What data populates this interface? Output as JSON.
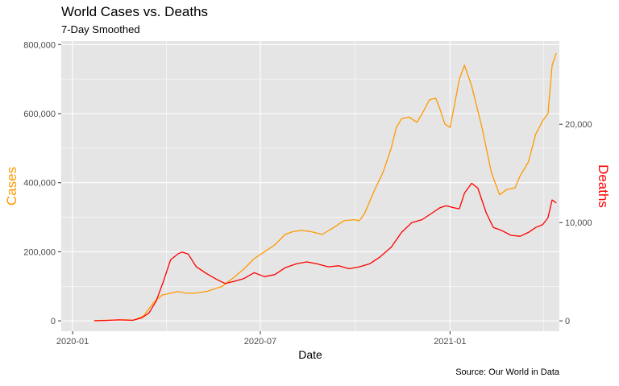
{
  "chart_data": {
    "type": "line",
    "title": "World Cases vs. Deaths",
    "subtitle": "7-Day Smoothed",
    "xlabel": "Date",
    "ylabel_left": "Cases",
    "ylabel_right": "Deaths",
    "caption": "Source:  Our World in Data",
    "x_range": [
      "2019-12-21",
      "2021-04-17"
    ],
    "x_ticks": [
      {
        "date": "2020-01-01",
        "label": "2020-01"
      },
      {
        "date": "2020-07-01",
        "label": "2020-07"
      },
      {
        "date": "2021-01-01",
        "label": "2021-01"
      }
    ],
    "y_left_range": [
      -30000,
      810000
    ],
    "y_left_ticks": [
      {
        "value": 0,
        "label": "0"
      },
      {
        "value": 200000,
        "label": "200,000"
      },
      {
        "value": 400000,
        "label": "400,000"
      },
      {
        "value": 600000,
        "label": "600,000"
      },
      {
        "value": 800000,
        "label": "800,000"
      }
    ],
    "y_right_range": [
      -1054,
      28459
    ],
    "y_right_ticks": [
      {
        "value": 0,
        "label": "0"
      },
      {
        "value": 10000,
        "label": "10,000"
      },
      {
        "value": 20000,
        "label": "20,000"
      }
    ],
    "grid": true,
    "colors": {
      "cases": "#ff9900",
      "deaths": "#ff0000",
      "panel": "#e5e5e5",
      "grid": "#ffffff"
    },
    "series": [
      {
        "key": "cases",
        "axis": "left",
        "x": [
          "2020-01-22",
          "2020-02-05",
          "2020-02-20",
          "2020-03-01",
          "2020-03-10",
          "2020-03-20",
          "2020-03-28",
          "2020-04-05",
          "2020-04-12",
          "2020-04-20",
          "2020-04-28",
          "2020-05-10",
          "2020-05-25",
          "2020-06-05",
          "2020-06-15",
          "2020-06-25",
          "2020-07-05",
          "2020-07-15",
          "2020-07-25",
          "2020-08-01",
          "2020-08-10",
          "2020-08-20",
          "2020-08-30",
          "2020-09-10",
          "2020-09-20",
          "2020-09-30",
          "2020-10-05",
          "2020-10-10",
          "2020-10-20",
          "2020-10-28",
          "2020-11-05",
          "2020-11-10",
          "2020-11-15",
          "2020-11-22",
          "2020-11-30",
          "2020-12-05",
          "2020-12-12",
          "2020-12-18",
          "2020-12-22",
          "2020-12-27",
          "2021-01-01",
          "2021-01-05",
          "2021-01-10",
          "2021-01-15",
          "2021-01-22",
          "2021-02-01",
          "2021-02-10",
          "2021-02-18",
          "2021-02-25",
          "2021-03-05",
          "2021-03-10",
          "2021-03-18",
          "2021-03-25",
          "2021-04-01",
          "2021-04-06",
          "2021-04-10",
          "2021-04-14"
        ],
        "values": [
          500,
          2000,
          3000,
          2000,
          15000,
          55000,
          75000,
          80000,
          85000,
          80000,
          80000,
          85000,
          100000,
          125000,
          150000,
          180000,
          200000,
          220000,
          250000,
          258000,
          262000,
          258000,
          250000,
          270000,
          290000,
          293000,
          290000,
          310000,
          380000,
          430000,
          500000,
          560000,
          585000,
          590000,
          575000,
          600000,
          640000,
          645000,
          615000,
          570000,
          560000,
          620000,
          700000,
          740000,
          680000,
          560000,
          430000,
          365000,
          380000,
          385000,
          420000,
          460000,
          540000,
          580000,
          600000,
          740000,
          775000
        ]
      },
      {
        "key": "deaths",
        "axis": "right",
        "x": [
          "2020-01-22",
          "2020-02-05",
          "2020-02-15",
          "2020-02-28",
          "2020-03-08",
          "2020-03-15",
          "2020-03-22",
          "2020-03-29",
          "2020-04-05",
          "2020-04-12",
          "2020-04-16",
          "2020-04-22",
          "2020-04-30",
          "2020-05-10",
          "2020-05-20",
          "2020-05-28",
          "2020-06-05",
          "2020-06-15",
          "2020-06-25",
          "2020-07-05",
          "2020-07-15",
          "2020-07-25",
          "2020-08-05",
          "2020-08-15",
          "2020-08-25",
          "2020-09-05",
          "2020-09-15",
          "2020-09-25",
          "2020-10-05",
          "2020-10-15",
          "2020-10-25",
          "2020-11-05",
          "2020-11-15",
          "2020-11-25",
          "2020-12-05",
          "2020-12-15",
          "2020-12-22",
          "2020-12-28",
          "2021-01-05",
          "2021-01-10",
          "2021-01-15",
          "2021-01-22",
          "2021-01-28",
          "2021-02-05",
          "2021-02-12",
          "2021-02-20",
          "2021-03-01",
          "2021-03-10",
          "2021-03-18",
          "2021-03-25",
          "2021-04-01",
          "2021-04-06",
          "2021-04-10",
          "2021-04-14"
        ],
        "values": [
          10,
          50,
          100,
          50,
          300,
          800,
          2000,
          4000,
          6200,
          6800,
          7000,
          6800,
          5500,
          4800,
          4200,
          3800,
          4000,
          4300,
          4900,
          4500,
          4700,
          5400,
          5800,
          6000,
          5800,
          5500,
          5600,
          5300,
          5500,
          5800,
          6500,
          7500,
          9000,
          10000,
          10300,
          11000,
          11500,
          11700,
          11500,
          11400,
          13000,
          14000,
          13500,
          11000,
          9500,
          9200,
          8700,
          8600,
          9000,
          9500,
          9800,
          10500,
          12300,
          12000
        ]
      }
    ]
  }
}
